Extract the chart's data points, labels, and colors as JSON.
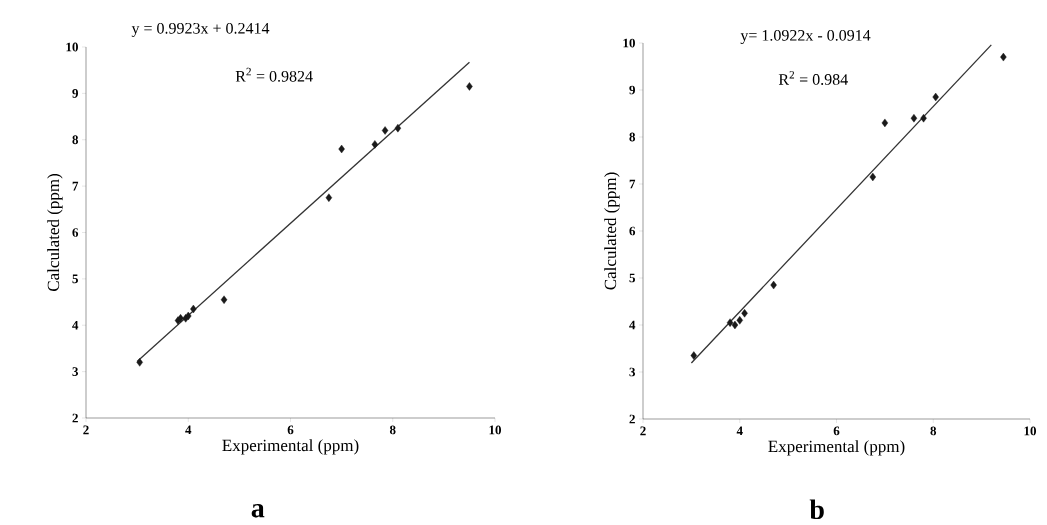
{
  "chart_data": [
    {
      "type": "scatter",
      "xlabel": "Experimental (ppm)",
      "ylabel": "Calculated (ppm)",
      "marker": "diamond",
      "xlim": [
        2,
        10
      ],
      "ylim": [
        2,
        10
      ],
      "xticks": [
        2,
        4,
        6,
        8,
        10
      ],
      "yticks": [
        2,
        3,
        4,
        5,
        6,
        7,
        8,
        9,
        10
      ],
      "annotations": [
        "y = 0.9923x + 0.2414",
        "R$^{2}$ = 0.9824",
        "a"
      ],
      "series": [
        {
          "color": "#1a1a1a",
          "x": [
            3.05,
            3.8,
            3.85,
            3.95,
            4.0,
            4.1,
            4.7,
            6.75,
            7.0,
            7.65,
            7.85,
            8.1,
            9.5
          ],
          "values": [
            3.2,
            4.1,
            4.15,
            4.15,
            4.2,
            4.35,
            4.55,
            6.75,
            7.8,
            7.9,
            8.2,
            8.25,
            9.15
          ]
        },
        {
          "type": "line",
          "marker": "none",
          "color": "#333333",
          "x": [
            3.0,
            9.5
          ],
          "values": [
            3.22,
            9.67
          ]
        }
      ]
    },
    {
      "type": "scatter",
      "xlabel": "Experimental (ppm)",
      "ylabel": "Calculated (ppm)",
      "marker": "diamond",
      "xlim": [
        2,
        10
      ],
      "ylim": [
        2,
        10
      ],
      "xticks": [
        2,
        4,
        6,
        8,
        10
      ],
      "yticks": [
        2,
        3,
        4,
        5,
        6,
        7,
        8,
        9,
        10
      ],
      "annotations": [
        "y= 1.0922x - 0.0914",
        "R$^{2}$ = 0.984",
        "b"
      ],
      "series": [
        {
          "color": "#1a1a1a",
          "x": [
            3.05,
            3.8,
            3.9,
            4.0,
            4.1,
            4.7,
            6.75,
            7.0,
            7.6,
            7.8,
            8.05,
            9.45
          ],
          "values": [
            3.35,
            4.05,
            4.0,
            4.1,
            4.25,
            4.85,
            7.15,
            8.3,
            8.4,
            8.4,
            8.85,
            9.7
          ]
        },
        {
          "type": "line",
          "marker": "none",
          "color": "#333333",
          "x": [
            3.0,
            9.2
          ],
          "values": [
            3.19,
            9.96
          ]
        }
      ]
    }
  ]
}
